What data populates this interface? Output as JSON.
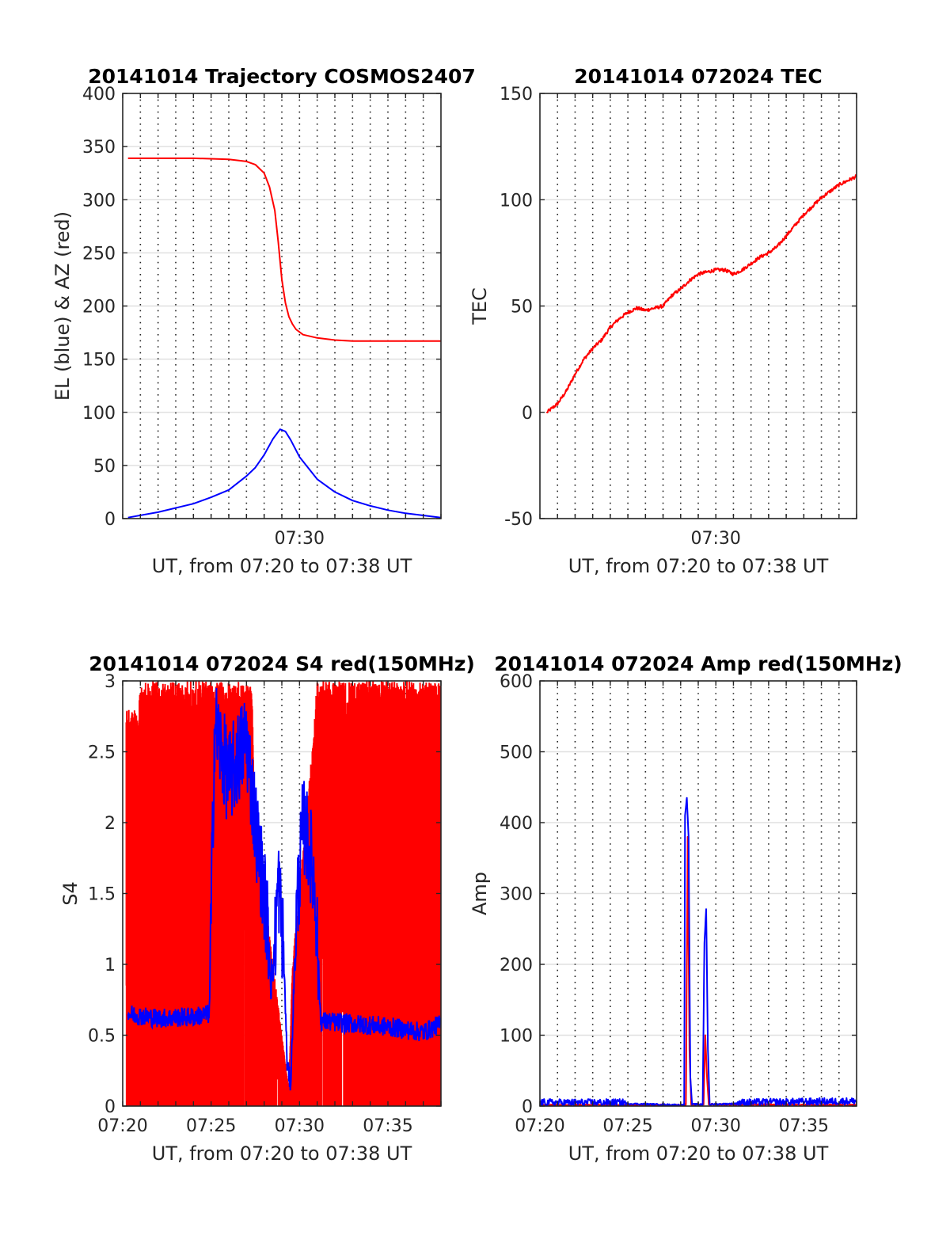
{
  "chart_data": [
    {
      "type": "line",
      "title": "20141014 Trajectory COSMOS2407",
      "xlabel": "UT, from 07:20 to 07:38 UT",
      "ylabel": "EL (blue) & AZ (red)",
      "xlim": [
        0,
        18
      ],
      "ylim": [
        0,
        400
      ],
      "yticks": [
        0,
        50,
        100,
        150,
        200,
        250,
        300,
        350,
        400
      ],
      "yticklabels": [
        "0",
        "50",
        "100",
        "150",
        "200",
        "250",
        "300",
        "350",
        "400"
      ],
      "xticks": [
        10
      ],
      "xticklabels": [
        "07:30"
      ],
      "grid": true,
      "series": [
        {
          "color": "#ff0000",
          "kind": "azimuth",
          "x": [
            0.3,
            4,
            6,
            7,
            7.5,
            8,
            8.3,
            8.6,
            8.8,
            9.0,
            9.2,
            9.4,
            9.6,
            9.8,
            10.2,
            11,
            12,
            13,
            15,
            18
          ],
          "y": [
            339,
            339,
            338,
            336,
            333,
            325,
            312,
            290,
            260,
            225,
            203,
            190,
            183,
            178,
            173,
            170,
            168,
            167,
            167,
            167
          ]
        },
        {
          "color": "#0000ff",
          "kind": "elevation",
          "x": [
            0.3,
            2,
            4,
            5,
            6,
            7,
            7.5,
            8,
            8.5,
            8.9,
            9.2,
            9.5,
            10,
            11,
            12,
            13,
            14,
            15,
            16,
            17,
            18
          ],
          "y": [
            1,
            6,
            14,
            20,
            27,
            40,
            48,
            60,
            75,
            84,
            82,
            74,
            58,
            37,
            25,
            17,
            12,
            8,
            5,
            3,
            1
          ]
        }
      ]
    },
    {
      "type": "line",
      "title": "20141014 072024 TEC",
      "xlabel": "UT, from 07:20 to 07:38 UT",
      "ylabel": "TEC",
      "xlim": [
        0,
        18
      ],
      "ylim": [
        -50,
        150
      ],
      "yticks": [
        -50,
        0,
        50,
        100,
        150
      ],
      "yticklabels": [
        "-50",
        "0",
        "50",
        "100",
        "150"
      ],
      "xticks": [
        10
      ],
      "xticklabels": [
        "07:30"
      ],
      "grid": true,
      "series": [
        {
          "color": "#ff0000",
          "x": [
            0.4,
            1,
            1.5,
            2,
            2.5,
            3,
            3.5,
            4,
            4.5,
            5,
            5.5,
            6,
            6.5,
            7,
            7.5,
            8,
            8.5,
            9,
            9.5,
            10,
            10.5,
            11,
            11.5,
            12,
            12.5,
            13,
            13.5,
            14,
            14.5,
            15,
            15.5,
            16,
            16.5,
            17,
            17.5,
            18
          ],
          "y": [
            0,
            4,
            10,
            18,
            25,
            30,
            34,
            40,
            44,
            47,
            49,
            48,
            49,
            50,
            55,
            58,
            62,
            65,
            66,
            67,
            67,
            65,
            67,
            70,
            73,
            75,
            78,
            83,
            88,
            93,
            97,
            101,
            104,
            107,
            109,
            111
          ]
        }
      ]
    },
    {
      "type": "line",
      "title": "20141014 072024 S4 red(150MHz)",
      "xlabel": "UT, from 07:20 to 07:38 UT",
      "ylabel": "S4",
      "xlim": [
        0,
        18
      ],
      "ylim": [
        0,
        3
      ],
      "yticks": [
        0,
        0.5,
        1,
        1.5,
        2,
        2.5,
        3
      ],
      "yticklabels": [
        "0",
        "0.5",
        "1",
        "1.5",
        "2",
        "2.5",
        "3"
      ],
      "xticks": [
        0,
        5,
        10,
        15
      ],
      "xticklabels": [
        "07:20",
        "07:25",
        "07:30",
        "07:35"
      ],
      "grid": true,
      "series": [
        {
          "color": "#ff0000",
          "render": "noisy-fill",
          "x": [
            0.2,
            0.9,
            1.0,
            4.9,
            5.2,
            7.3,
            7.5,
            8.5,
            9.4,
            9.6,
            10.7,
            11.0,
            18
          ],
          "y": [
            2.8,
            2.8,
            3.0,
            3.0,
            3.0,
            3.0,
            2.0,
            1.0,
            0.1,
            1.0,
            2.5,
            3.0,
            3.0
          ]
        },
        {
          "color": "#0000ff",
          "render": "noisy-line",
          "x": [
            0.3,
            2,
            4,
            4.9,
            5.2,
            6,
            7,
            7.5,
            8,
            8.5,
            8.8,
            9.1,
            9.3,
            9.5,
            9.8,
            10.2,
            10.6,
            10.9,
            11.2,
            13,
            15,
            17,
            18
          ],
          "y": [
            0.65,
            0.62,
            0.63,
            0.65,
            2.7,
            2.3,
            2.6,
            2.0,
            1.5,
            0.9,
            1.6,
            1.1,
            0.3,
            0.15,
            1.3,
            2.0,
            1.8,
            1.5,
            0.6,
            0.58,
            0.56,
            0.52,
            0.58
          ]
        }
      ]
    },
    {
      "type": "line",
      "title": "20141014 072024 Amp red(150MHz)",
      "xlabel": "UT, from 07:20 to 07:38 UT",
      "ylabel": "Amp",
      "xlim": [
        0,
        18
      ],
      "ylim": [
        0,
        600
      ],
      "yticks": [
        0,
        100,
        200,
        300,
        400,
        500,
        600
      ],
      "yticklabels": [
        "0",
        "100",
        "200",
        "300",
        "400",
        "500",
        "600"
      ],
      "xticks": [
        0,
        5,
        10,
        15
      ],
      "xticklabels": [
        "07:20",
        "07:25",
        "07:30",
        "07:35"
      ],
      "grid": true,
      "series": [
        {
          "color": "#ff0000",
          "x": [
            0,
            8.2,
            8.3,
            8.4,
            8.5,
            8.6,
            9.3,
            9.4,
            9.5,
            9.6,
            18
          ],
          "y": [
            1,
            1,
            2,
            380,
            80,
            2,
            2,
            100,
            40,
            2,
            1
          ]
        },
        {
          "color": "#0000ff",
          "x": [
            0,
            4.9,
            8.2,
            8.25,
            8.35,
            8.45,
            8.55,
            8.65,
            9.25,
            9.35,
            9.45,
            9.55,
            9.65,
            11.2,
            18
          ],
          "y": [
            3,
            3,
            1,
            410,
            435,
            380,
            40,
            2,
            2,
            230,
            278,
            80,
            2,
            3,
            5
          ]
        }
      ]
    }
  ]
}
